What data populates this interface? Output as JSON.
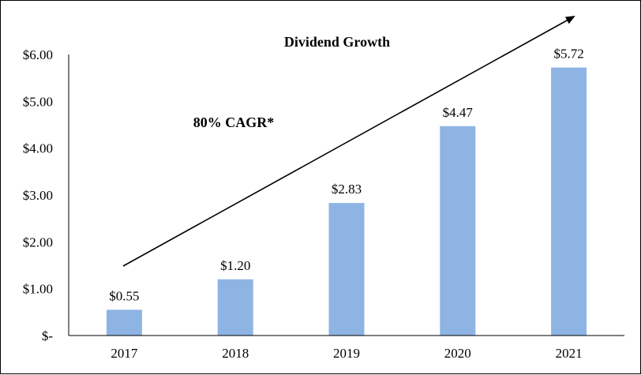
{
  "chart_data": {
    "type": "bar",
    "title": "Dividend Growth",
    "annotation": "80% CAGR*",
    "categories": [
      "2017",
      "2018",
      "2019",
      "2020",
      "2021"
    ],
    "values": [
      0.55,
      1.2,
      2.83,
      4.47,
      5.72
    ],
    "data_labels": [
      "$0.55",
      "$1.20",
      "$2.83",
      "$4.47",
      "$5.72"
    ],
    "ylim": [
      0,
      6
    ],
    "yticks": [
      0,
      1,
      2,
      3,
      4,
      5,
      6
    ],
    "ytick_labels": [
      "$-",
      "$1.00",
      "$2.00",
      "$3.00",
      "$4.00",
      "$5.00",
      "$6.00"
    ],
    "xlabel": "",
    "ylabel": "",
    "grid": false,
    "bar_color": "#8EB4E3",
    "trend_arrow": true
  }
}
